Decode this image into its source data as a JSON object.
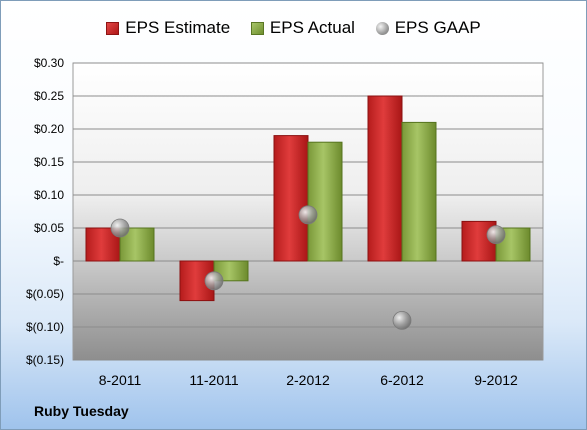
{
  "chart_data": {
    "type": "bar",
    "categories": [
      "8-2011",
      "11-2011",
      "2-2012",
      "6-2012",
      "9-2012"
    ],
    "series": [
      {
        "name": "EPS Estimate",
        "values": [
          0.05,
          -0.06,
          0.19,
          0.25,
          0.06
        ],
        "color": "#c62222"
      },
      {
        "name": "EPS Actual",
        "values": [
          0.05,
          -0.03,
          0.18,
          0.21,
          0.05
        ],
        "color": "#8aab45"
      },
      {
        "name": "EPS GAAP",
        "values": [
          0.05,
          -0.03,
          0.07,
          -0.09,
          0.04
        ],
        "color": "#9a9a9a",
        "marker": "circle"
      }
    ],
    "ylim": [
      -0.15,
      0.3
    ],
    "yticks": [
      0.3,
      0.25,
      0.2,
      0.15,
      0.1,
      0.05,
      0,
      -0.05,
      -0.1,
      -0.15
    ],
    "ytick_labels": [
      "$0.30",
      "$0.25",
      "$0.20",
      "$0.15",
      "$0.10",
      "$0.05",
      "$-",
      "$(0.05)",
      "$(0.10)",
      "$(0.15)"
    ],
    "grid": true,
    "legend_position": "top"
  },
  "legend": {
    "estimate": "EPS Estimate",
    "actual": "EPS Actual",
    "gaap": "EPS GAAP"
  },
  "company_label": "Ruby Tuesday"
}
